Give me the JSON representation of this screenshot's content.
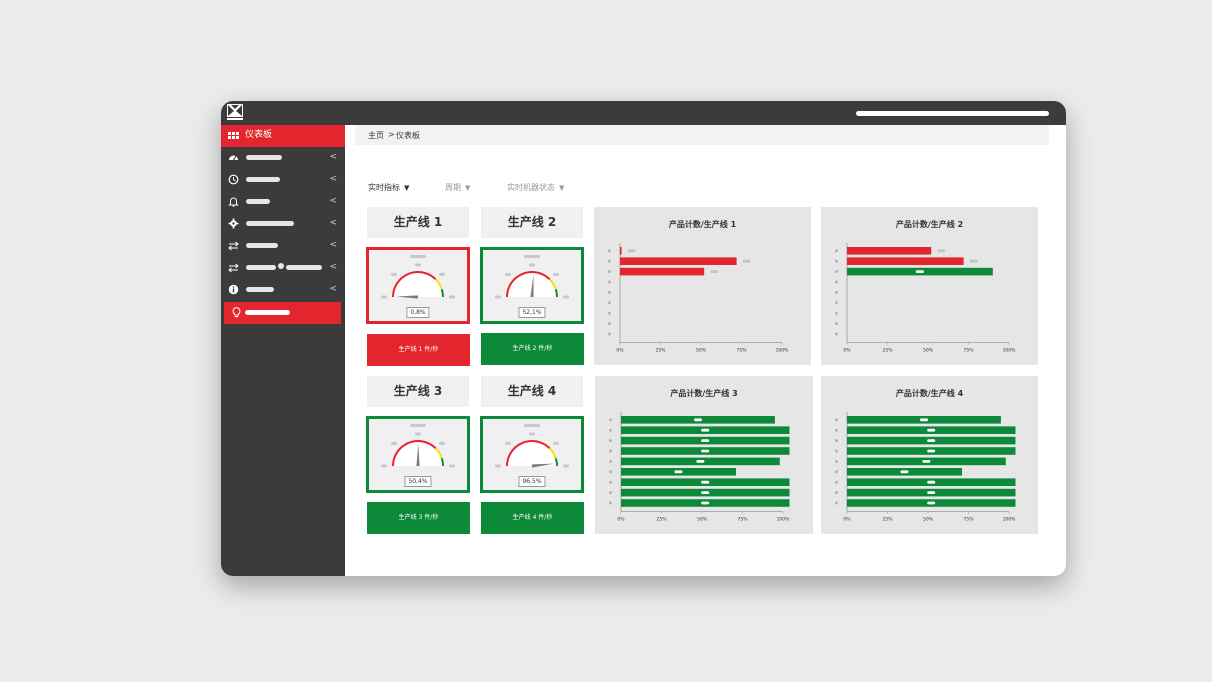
{
  "header": {},
  "sidebar": {
    "items": [
      {
        "icon": "grid-icon",
        "label": "仪表板",
        "active": true
      },
      {
        "icon": "speedometer-icon"
      },
      {
        "icon": "clock-icon"
      },
      {
        "icon": "bell-icon"
      },
      {
        "icon": "gear-icon"
      },
      {
        "icon": "transfer-icon"
      },
      {
        "icon": "transfer-icon"
      },
      {
        "icon": "info-icon"
      },
      {
        "icon": "lightbulb-icon",
        "highlighted": true
      }
    ]
  },
  "breadcrumb": {
    "home": "主页",
    "separator": ">",
    "current": "仪表板"
  },
  "tabs": [
    {
      "label": "实时指标",
      "active": true
    },
    {
      "label": "周期",
      "active": false
    },
    {
      "label": "实时机器状态",
      "active": false
    }
  ],
  "lines": [
    {
      "title": "生产线 1",
      "efficiency": "0,8%",
      "efficiency_value": 0.8,
      "status": "red",
      "rate_label": "生产线 1 件/秒"
    },
    {
      "title": "生产线 2",
      "efficiency": "52,1%",
      "efficiency_value": 52.1,
      "status": "green",
      "rate_label": "生产线 2 件/秒"
    },
    {
      "title": "生产线 3",
      "efficiency": "50,4%",
      "efficiency_value": 50.4,
      "status": "green",
      "rate_label": "生产线 3 件/秒"
    },
    {
      "title": "生产线 4",
      "efficiency": "96,5%",
      "efficiency_value": 96.5,
      "status": "green",
      "rate_label": "生产线 4 件/秒"
    }
  ],
  "colors": {
    "red": "#e3262d",
    "green": "#0d8a39",
    "sidebar": "#3b3b3b",
    "card": "#e6e6e6"
  },
  "chart_data": [
    {
      "type": "bar",
      "orientation": "horizontal",
      "title": "产品计数/生产线 1",
      "x_ticks": [
        "0%",
        "25%",
        "50%",
        "75%",
        "100%"
      ],
      "xlim": [
        0,
        100
      ],
      "values": [
        1,
        72,
        52,
        0,
        0,
        0,
        0,
        0,
        0
      ],
      "colors": [
        "#e3262d",
        "#e3262d",
        "#e3262d"
      ]
    },
    {
      "type": "bar",
      "orientation": "horizontal",
      "title": "产品计数/生产线 2",
      "x_ticks": [
        "0%",
        "25%",
        "50%",
        "75%",
        "100%"
      ],
      "xlim": [
        0,
        100
      ],
      "values": [
        52,
        72,
        90,
        0,
        0,
        0,
        0,
        0,
        0
      ],
      "colors": [
        "#e3262d",
        "#e3262d",
        "#0d8a39"
      ]
    },
    {
      "type": "bar",
      "orientation": "horizontal",
      "title": "产品计数/生产线 3",
      "x_ticks": [
        "0%",
        "25%",
        "50%",
        "75%",
        "100%"
      ],
      "xlim": [
        0,
        100
      ],
      "values": [
        95,
        104,
        104,
        104,
        98,
        71,
        104,
        104,
        104
      ],
      "colors": [
        "#0d8a39"
      ]
    },
    {
      "type": "bar",
      "orientation": "horizontal",
      "title": "产品计数/生产线 4",
      "x_ticks": [
        "0%",
        "25%",
        "50%",
        "75%",
        "100%"
      ],
      "xlim": [
        0,
        100
      ],
      "values": [
        95,
        104,
        104,
        104,
        98,
        71,
        104,
        104,
        104
      ],
      "colors": [
        "#0d8a39"
      ]
    }
  ]
}
